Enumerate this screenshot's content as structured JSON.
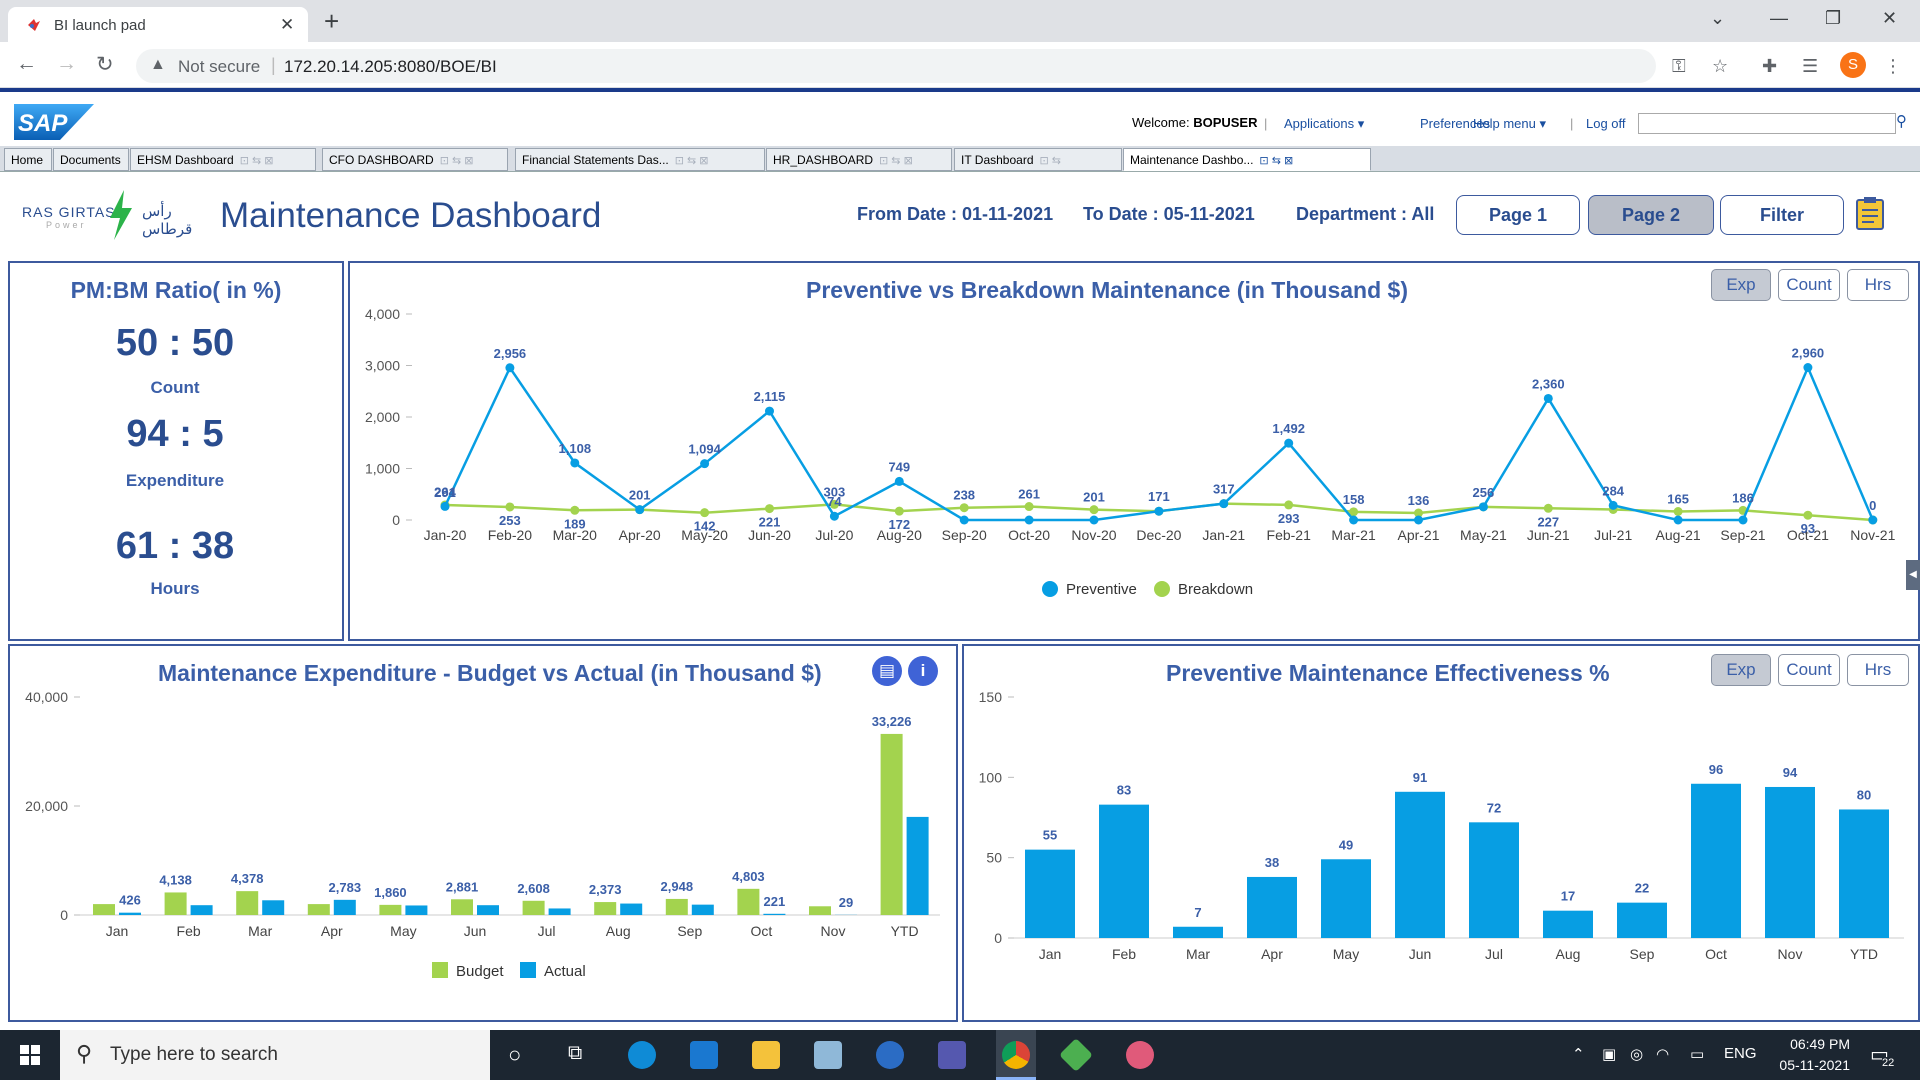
{
  "browser": {
    "tab_title": "BI launch pad",
    "not_secure": "Not secure",
    "url": "172.20.14.205:8080/BOE/BI",
    "profile_initial": "S"
  },
  "bi": {
    "welcome_prefix": "Welcome:",
    "user": "BOPUSER",
    "applications": "Applications",
    "preferences": "Preferences",
    "help": "Help menu",
    "logoff": "Log off",
    "sep": "|",
    "tabs": [
      "Home",
      "Documents",
      "EHSM Dashboard",
      "CFO DASHBOARD",
      "Financial Statements Das...",
      "HR_DASHBOARD",
      "IT Dashboard",
      "Maintenance Dashbo..."
    ]
  },
  "dashboard": {
    "brand_text": "RAS GIRTAS",
    "brand_sub": "Power",
    "brand_arabic": "رأس قرطاس",
    "title": "Maintenance Dashboard",
    "from_date": "From Date : 01-11-2021",
    "to_date": "To Date : 05-11-2021",
    "department": "Department : All",
    "page1": "Page 1",
    "page2": "Page 2",
    "filter": "Filter"
  },
  "ratio_panel": {
    "title": "PM:BM Ratio( in %)",
    "count_value": "50 : 50",
    "count_label": "Count",
    "exp_value": "94 : 5",
    "exp_label": "Expenditure",
    "hrs_value": "61 : 38",
    "hrs_label": "Hours"
  },
  "toggles": {
    "exp": "Exp",
    "count": "Count",
    "hrs": "Hrs"
  },
  "colors": {
    "blue": "#079ee3",
    "green": "#a3d34e",
    "title": "#3b5fa8",
    "dark": "#2a4d8f"
  },
  "chart_data": [
    {
      "type": "line",
      "title": "Preventive vs Breakdown Maintenance (in Thousand $)",
      "ylim": [
        0,
        4000
      ],
      "yticks": [
        "0",
        "1,000",
        "2,000",
        "3,000",
        "4,000"
      ],
      "grid": false,
      "legend_position": "bottom",
      "categories": [
        "Jan-20",
        "Feb-20",
        "Mar-20",
        "Apr-20",
        "May-20",
        "Jun-20",
        "Jul-20",
        "Aug-20",
        "Sep-20",
        "Oct-20",
        "Nov-20",
        "Dec-20",
        "Jan-21",
        "Feb-21",
        "Mar-21",
        "Apr-21",
        "May-21",
        "Jun-21",
        "Jul-21",
        "Aug-21",
        "Sep-21",
        "Oct-21",
        "Nov-21"
      ],
      "series": [
        {
          "name": "Preventive",
          "values": [
            264,
            2956,
            1108,
            201,
            1094,
            2115,
            74,
            749,
            0,
            0,
            0,
            171,
            317,
            1492,
            0,
            0,
            256,
            2360,
            284,
            0,
            0,
            2960,
            0
          ],
          "labels": [
            "264",
            "2,956",
            "1,108",
            "201",
            "1,094",
            "2,115",
            "74",
            "749",
            "",
            "",
            "",
            "171",
            "317",
            "1,492",
            "",
            "",
            "256",
            "2,360",
            "284",
            "",
            "",
            "2,960",
            "0"
          ]
        },
        {
          "name": "Breakdown",
          "values": [
            291,
            253,
            189,
            201,
            142,
            221,
            303,
            172,
            238,
            261,
            201,
            171,
            317,
            293,
            158,
            136,
            256,
            227,
            204,
            165,
            186,
            93,
            0
          ],
          "labels": [
            "291",
            "253",
            "189",
            "",
            "142",
            "221",
            "303",
            "172",
            "238",
            "261",
            "201",
            "",
            "",
            "293",
            "158",
            "136",
            "",
            "227",
            "",
            "165",
            "186",
            "93",
            ""
          ]
        }
      ]
    },
    {
      "type": "bar",
      "title": "Maintenance Expenditure - Budget vs Actual (in Thousand $)",
      "ylim": [
        0,
        40000
      ],
      "yticks": [
        "0",
        "20,000",
        "40,000"
      ],
      "grid": false,
      "legend_position": "bottom",
      "categories": [
        "Jan",
        "Feb",
        "Mar",
        "Apr",
        "May",
        "Jun",
        "Jul",
        "Aug",
        "Sep",
        "Oct",
        "Nov",
        "YTD"
      ],
      "series": [
        {
          "name": "Budget",
          "values": [
            2000,
            4138,
            4378,
            2000,
            1860,
            2881,
            2608,
            2373,
            2948,
            4803,
            1600,
            33226
          ],
          "labels": [
            "",
            "4,138",
            "4,378",
            "",
            "1,860",
            "2,881",
            "2,608",
            "2,373",
            "2,948",
            "4,803",
            "",
            "33,226"
          ]
        },
        {
          "name": "Actual",
          "values": [
            426,
            1800,
            2700,
            2783,
            1750,
            1800,
            1200,
            2100,
            1900,
            221,
            29,
            18000
          ],
          "labels": [
            "426",
            "",
            "",
            "2,783",
            "",
            "",
            "",
            "",
            "",
            "221",
            "29",
            ""
          ]
        }
      ]
    },
    {
      "type": "bar",
      "title": "Preventive Maintenance Effectiveness %",
      "ylim": [
        0,
        150
      ],
      "yticks": [
        "0",
        "50",
        "100",
        "150"
      ],
      "grid": false,
      "categories": [
        "Jan",
        "Feb",
        "Mar",
        "Apr",
        "May",
        "Jun",
        "Jul",
        "Aug",
        "Sep",
        "Oct",
        "Nov",
        "YTD"
      ],
      "series": [
        {
          "values": [
            55,
            83,
            7,
            38,
            49,
            91,
            72,
            17,
            22,
            96,
            94,
            80
          ]
        }
      ]
    }
  ],
  "taskbar": {
    "search_placeholder": "Type here to search",
    "lang": "ENG",
    "time": "06:49 PM",
    "date": "05-11-2021",
    "notif": "22"
  }
}
